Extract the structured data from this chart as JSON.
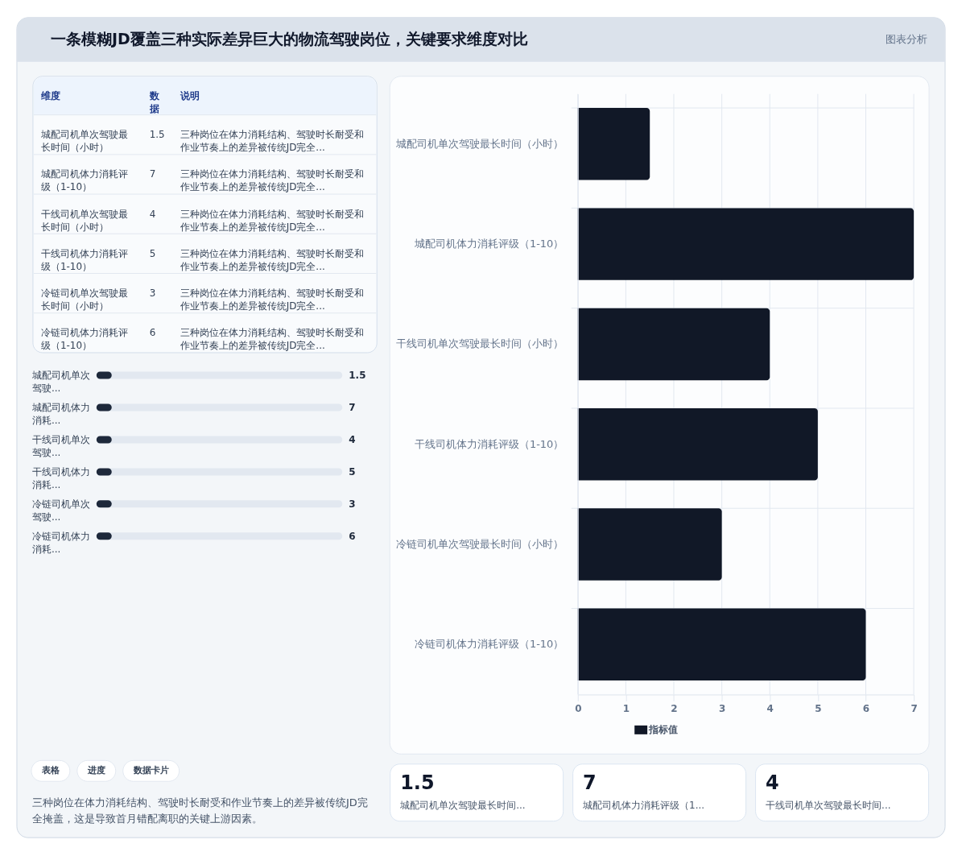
{
  "chart_data": [
    {
      "type": "other",
      "title": "一条模糊JD覆盖三种实际差异巨大的物流驾驶岗位，关键要求维度对比",
      "annotations": [
        "图表分析"
      ]
    },
    {
      "type": "other",
      "categories": [
        "城配司机单次驾驶最长时间（小时）",
        "城配司机体力消耗评级（1-10）",
        "干线司机单次驾驶最长时间（小时）",
        "干线司机体力消耗评级（1-10）",
        "冷链司机单次驾驶最长时间（小时）",
        "冷链司机体力消耗评级（1-10）"
      ],
      "values": [
        1.5,
        7,
        4,
        5,
        3,
        6
      ],
      "data_labels": true,
      "annotations": [
        "维度",
        "数据",
        "说明",
        "三种岗位在体力消耗结构、驾驶时长耐受和作业节奏上的差异被传统JD完全...",
        "三种岗位在体力消耗结构、驾驶时长耐受和作业节奏上的差异被传统JD完全...",
        "三种岗位在体力消耗结构、驾驶时长耐受和作业节奏上的差异被传统JD完全...",
        "三种岗位在体力消耗结构、驾驶时长耐受和作业节奏上的差异被传统JD完全...",
        "三种岗位在体力消耗结构、驾驶时长耐受和作业节奏上的差异被传统JD完全...",
        "三种岗位在体力消耗结构、驾驶时长耐受和作业节奏上的差异被传统JD完全..."
      ]
    },
    {
      "type": "other",
      "categories": [
        "城配司机单次驾驶...",
        "城配司机体力消耗...",
        "干线司机单次驾驶...",
        "干线司机体力消耗...",
        "冷链司机单次驾驶...",
        "冷链司机体力消耗..."
      ],
      "values": [
        1.5,
        7,
        4,
        5,
        3,
        6
      ],
      "data_labels": true
    },
    {
      "type": "bar",
      "orientation": "horizontal",
      "categories": [
        "城配司机单次驾驶最长时间（小时）",
        "城配司机体力消耗评级（1-10）",
        "干线司机单次驾驶最长时间（小时）",
        "干线司机体力消耗评级（1-10）",
        "冷链司机单次驾驶最长时间（小时）",
        "冷链司机体力消耗评级（1-10）"
      ],
      "series": [
        {
          "name": "指标值",
          "color": "#111827",
          "values": [
            1.5,
            7,
            4,
            5,
            3,
            6
          ]
        }
      ],
      "xlim": [
        0,
        7
      ],
      "xticks": [
        0,
        1,
        2,
        3,
        4,
        5,
        6,
        7
      ],
      "grid": true,
      "legend": "bottom"
    },
    {
      "type": "other",
      "categories": [
        "城配司机单次驾驶最长时间...",
        "城配司机体力消耗评级（1...",
        "干线司机单次驾驶最长时间..."
      ],
      "values": [
        1.5,
        7,
        4
      ],
      "data_labels": true
    },
    {
      "type": "other",
      "annotations": [
        "表格",
        "进度",
        "数据卡片",
        "三种岗位在体力消耗结构、驾驶时长耐受和作业节奏上的差异被传统JD完全掩盖，这是导致首月错配离职的关键上游因素。"
      ]
    }
  ]
}
